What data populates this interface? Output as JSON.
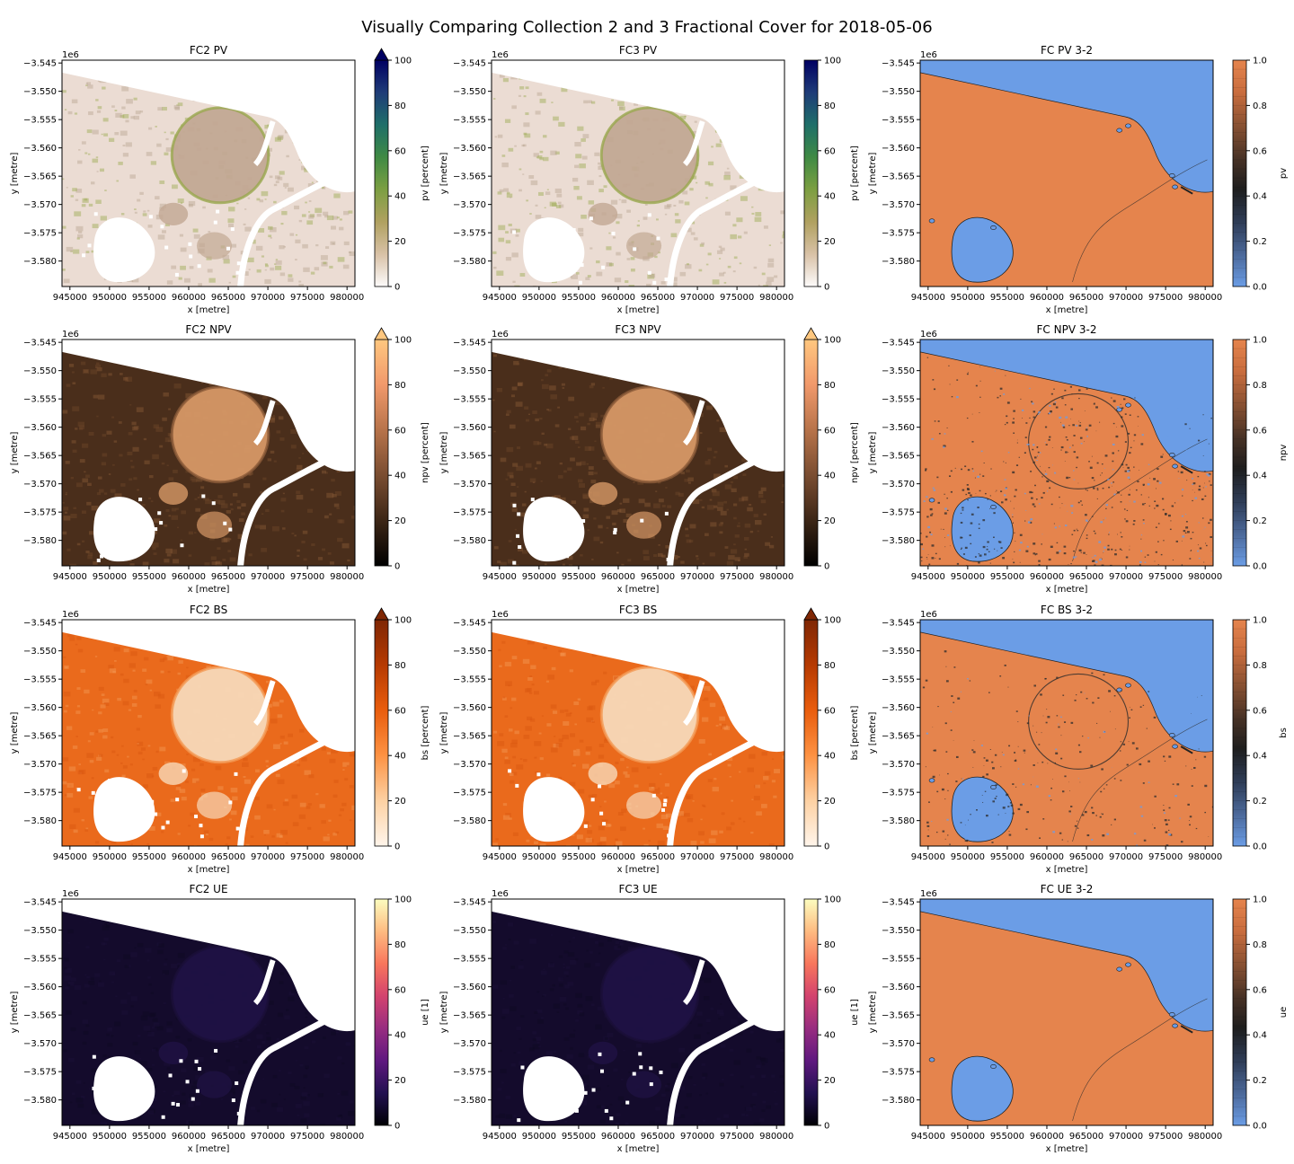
{
  "figure_title": "Visually Comparing Collection 2 and 3 Fractional Cover for 2018-05-06",
  "x_offset_label": "1e6",
  "colors": {
    "diff_low": "#6b9de6",
    "diff_high": "#e5844d",
    "nodata": "#ffffff"
  },
  "chart_data": [
    {
      "type": "heatmap",
      "title": "FC2 PV",
      "xlabel": "x [metre]",
      "ylabel": "y [metre]",
      "colorbar_label": "pv [percent]",
      "cmap": "gist_earth_r",
      "clim": [
        0,
        100
      ],
      "cbar_ticks": [
        "0",
        "20",
        "40",
        "60",
        "80",
        "100"
      ],
      "cbar_extend_top": true,
      "variant": "pv",
      "diff": false,
      "x_ticks": [
        "945000",
        "950000",
        "955000",
        "960000",
        "965000",
        "970000",
        "975000",
        "980000"
      ],
      "y_ticks": [
        "−3.545",
        "−3.550",
        "−3.555",
        "−3.560",
        "−3.565",
        "−3.570",
        "−3.575",
        "−3.580"
      ],
      "xlim": [
        944000,
        981000
      ],
      "ylim": [
        -3584500,
        -3544500
      ]
    },
    {
      "type": "heatmap",
      "title": "FC3 PV",
      "xlabel": "x [metre]",
      "ylabel": "y [metre]",
      "colorbar_label": "pv [percent]",
      "cmap": "gist_earth_r",
      "clim": [
        0,
        100
      ],
      "cbar_ticks": [
        "0",
        "20",
        "40",
        "60",
        "80",
        "100"
      ],
      "cbar_extend_top": false,
      "variant": "pv",
      "diff": false,
      "x_ticks": [
        "945000",
        "950000",
        "955000",
        "960000",
        "965000",
        "970000",
        "975000",
        "980000"
      ],
      "y_ticks": [
        "−3.545",
        "−3.550",
        "−3.555",
        "−3.560",
        "−3.565",
        "−3.570",
        "−3.575",
        "−3.580"
      ],
      "xlim": [
        944000,
        981000
      ],
      "ylim": [
        -3584500,
        -3544500
      ]
    },
    {
      "type": "heatmap",
      "title": "FC PV 3-2",
      "xlabel": "x [metre]",
      "ylabel": "y [metre]",
      "colorbar_label": "pv",
      "cmap": "diverging",
      "clim": [
        0,
        1
      ],
      "cbar_ticks": [
        "0.0",
        "0.2",
        "0.4",
        "0.6",
        "0.8",
        "1.0"
      ],
      "cbar_extend_top": false,
      "variant": "diff_pv",
      "diff": true,
      "x_ticks": [
        "945000",
        "950000",
        "955000",
        "960000",
        "965000",
        "970000",
        "975000",
        "980000"
      ],
      "y_ticks": [
        "−3.545",
        "−3.550",
        "−3.555",
        "−3.560",
        "−3.565",
        "−3.570",
        "−3.575",
        "−3.580"
      ],
      "xlim": [
        944000,
        981000
      ],
      "ylim": [
        -3584500,
        -3544500
      ]
    },
    {
      "type": "heatmap",
      "title": "FC2 NPV",
      "xlabel": "x [metre]",
      "ylabel": "y [metre]",
      "colorbar_label": "npv [percent]",
      "cmap": "copper",
      "clim": [
        0,
        100
      ],
      "cbar_ticks": [
        "0",
        "20",
        "40",
        "60",
        "80",
        "100"
      ],
      "cbar_extend_top": true,
      "variant": "npv",
      "diff": false,
      "x_ticks": [
        "945000",
        "950000",
        "955000",
        "960000",
        "965000",
        "970000",
        "975000",
        "980000"
      ],
      "y_ticks": [
        "−3.545",
        "−3.550",
        "−3.555",
        "−3.560",
        "−3.565",
        "−3.570",
        "−3.575",
        "−3.580"
      ],
      "xlim": [
        944000,
        981000
      ],
      "ylim": [
        -3584500,
        -3544500
      ]
    },
    {
      "type": "heatmap",
      "title": "FC3 NPV",
      "xlabel": "x [metre]",
      "ylabel": "y [metre]",
      "colorbar_label": "npv [percent]",
      "cmap": "copper",
      "clim": [
        0,
        100
      ],
      "cbar_ticks": [
        "0",
        "20",
        "40",
        "60",
        "80",
        "100"
      ],
      "cbar_extend_top": true,
      "variant": "npv",
      "diff": false,
      "x_ticks": [
        "945000",
        "950000",
        "955000",
        "960000",
        "965000",
        "970000",
        "975000",
        "980000"
      ],
      "y_ticks": [
        "−3.545",
        "−3.550",
        "−3.555",
        "−3.560",
        "−3.565",
        "−3.570",
        "−3.575",
        "−3.580"
      ],
      "xlim": [
        944000,
        981000
      ],
      "ylim": [
        -3584500,
        -3544500
      ]
    },
    {
      "type": "heatmap",
      "title": "FC NPV 3-2",
      "xlabel": "x [metre]",
      "ylabel": "y [metre]",
      "colorbar_label": "npv",
      "cmap": "diverging",
      "clim": [
        0,
        1
      ],
      "cbar_ticks": [
        "0.0",
        "0.2",
        "0.4",
        "0.6",
        "0.8",
        "1.0"
      ],
      "cbar_extend_top": false,
      "variant": "diff_npv",
      "diff": true,
      "x_ticks": [
        "945000",
        "950000",
        "955000",
        "960000",
        "965000",
        "970000",
        "975000",
        "980000"
      ],
      "y_ticks": [
        "−3.545",
        "−3.550",
        "−3.555",
        "−3.560",
        "−3.565",
        "−3.570",
        "−3.575",
        "−3.580"
      ],
      "xlim": [
        944000,
        981000
      ],
      "ylim": [
        -3584500,
        -3544500
      ]
    },
    {
      "type": "heatmap",
      "title": "FC2 BS",
      "xlabel": "x [metre]",
      "ylabel": "y [metre]",
      "colorbar_label": "bs [percent]",
      "cmap": "Oranges",
      "clim": [
        0,
        100
      ],
      "cbar_ticks": [
        "0",
        "20",
        "40",
        "60",
        "80",
        "100"
      ],
      "cbar_extend_top": true,
      "variant": "bs",
      "diff": false,
      "x_ticks": [
        "945000",
        "950000",
        "955000",
        "960000",
        "965000",
        "970000",
        "975000",
        "980000"
      ],
      "y_ticks": [
        "−3.545",
        "−3.550",
        "−3.555",
        "−3.560",
        "−3.565",
        "−3.570",
        "−3.575",
        "−3.580"
      ],
      "xlim": [
        944000,
        981000
      ],
      "ylim": [
        -3584500,
        -3544500
      ]
    },
    {
      "type": "heatmap",
      "title": "FC3 BS",
      "xlabel": "x [metre]",
      "ylabel": "y [metre]",
      "colorbar_label": "bs [percent]",
      "cmap": "Oranges",
      "clim": [
        0,
        100
      ],
      "cbar_ticks": [
        "0",
        "20",
        "40",
        "60",
        "80",
        "100"
      ],
      "cbar_extend_top": true,
      "variant": "bs",
      "diff": false,
      "x_ticks": [
        "945000",
        "950000",
        "955000",
        "960000",
        "965000",
        "970000",
        "975000",
        "980000"
      ],
      "y_ticks": [
        "−3.545",
        "−3.550",
        "−3.555",
        "−3.560",
        "−3.565",
        "−3.570",
        "−3.575",
        "−3.580"
      ],
      "xlim": [
        944000,
        981000
      ],
      "ylim": [
        -3584500,
        -3544500
      ]
    },
    {
      "type": "heatmap",
      "title": "FC BS 3-2",
      "xlabel": "x [metre]",
      "ylabel": "y [metre]",
      "colorbar_label": "bs",
      "cmap": "diverging",
      "clim": [
        0,
        1
      ],
      "cbar_ticks": [
        "0.0",
        "0.2",
        "0.4",
        "0.6",
        "0.8",
        "1.0"
      ],
      "cbar_extend_top": false,
      "variant": "diff_bs",
      "diff": true,
      "x_ticks": [
        "945000",
        "950000",
        "955000",
        "960000",
        "965000",
        "970000",
        "975000",
        "980000"
      ],
      "y_ticks": [
        "−3.545",
        "−3.550",
        "−3.555",
        "−3.560",
        "−3.565",
        "−3.570",
        "−3.575",
        "−3.580"
      ],
      "xlim": [
        944000,
        981000
      ],
      "ylim": [
        -3584500,
        -3544500
      ]
    },
    {
      "type": "heatmap",
      "title": "FC2 UE",
      "xlabel": "x [metre]",
      "ylabel": "y [metre]",
      "colorbar_label": "ue [1]",
      "cmap": "magma",
      "clim": [
        0,
        100
      ],
      "cbar_ticks": [
        "0",
        "20",
        "40",
        "60",
        "80",
        "100"
      ],
      "cbar_extend_top": false,
      "variant": "ue",
      "diff": false,
      "x_ticks": [
        "945000",
        "950000",
        "955000",
        "960000",
        "965000",
        "970000",
        "975000",
        "980000"
      ],
      "y_ticks": [
        "−3.545",
        "−3.550",
        "−3.555",
        "−3.560",
        "−3.565",
        "−3.570",
        "−3.575",
        "−3.580"
      ],
      "xlim": [
        944000,
        981000
      ],
      "ylim": [
        -3584500,
        -3544500
      ]
    },
    {
      "type": "heatmap",
      "title": "FC3 UE",
      "xlabel": "x [metre]",
      "ylabel": "y [metre]",
      "colorbar_label": "ue [1]",
      "cmap": "magma",
      "clim": [
        0,
        100
      ],
      "cbar_ticks": [
        "0",
        "20",
        "40",
        "60",
        "80",
        "100"
      ],
      "cbar_extend_top": false,
      "variant": "ue",
      "diff": false,
      "x_ticks": [
        "945000",
        "950000",
        "955000",
        "960000",
        "965000",
        "970000",
        "975000",
        "980000"
      ],
      "y_ticks": [
        "−3.545",
        "−3.550",
        "−3.555",
        "−3.560",
        "−3.565",
        "−3.570",
        "−3.575",
        "−3.580"
      ],
      "xlim": [
        944000,
        981000
      ],
      "ylim": [
        -3584500,
        -3544500
      ]
    },
    {
      "type": "heatmap",
      "title": "FC UE 3-2",
      "xlabel": "x [metre]",
      "ylabel": "y [metre]",
      "colorbar_label": "ue",
      "cmap": "diverging",
      "clim": [
        0,
        1
      ],
      "cbar_ticks": [
        "0.0",
        "0.2",
        "0.4",
        "0.6",
        "0.8",
        "1.0"
      ],
      "cbar_extend_top": false,
      "variant": "diff_ue",
      "diff": true,
      "x_ticks": [
        "945000",
        "950000",
        "955000",
        "960000",
        "965000",
        "970000",
        "975000",
        "980000"
      ],
      "y_ticks": [
        "−3.545",
        "−3.550",
        "−3.555",
        "−3.560",
        "−3.565",
        "−3.570",
        "−3.575",
        "−3.580"
      ],
      "xlim": [
        944000,
        981000
      ],
      "ylim": [
        -3584500,
        -3544500
      ]
    }
  ]
}
